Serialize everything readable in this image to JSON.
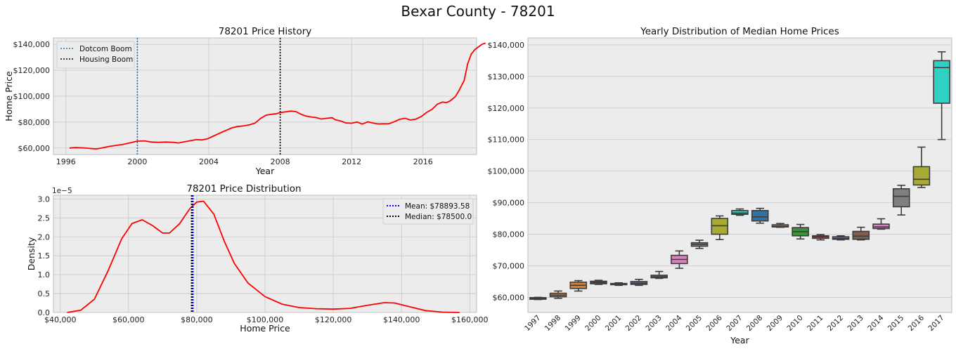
{
  "figure": {
    "suptitle": "Bexar County - 78201"
  },
  "chart_data": [
    {
      "id": "history",
      "type": "line",
      "title": "78201 Price History",
      "xlabel": "Year",
      "ylabel": "Home Price",
      "xlim": [
        1995.3,
        2019.0
      ],
      "ylim": [
        55000,
        145000
      ],
      "xticks": [
        1996,
        2000,
        2004,
        2008,
        2012,
        2016
      ],
      "yticks": [
        60000,
        80000,
        100000,
        120000,
        140000
      ],
      "ytick_labels": [
        "$60,000",
        "$80,000",
        "$100,000",
        "$120,000",
        "$140,000"
      ],
      "grid": true,
      "legend_position": "upper-left",
      "series": [
        {
          "color": "#ff0000",
          "points": [
            [
              1996.2,
              60000
            ],
            [
              1996.5,
              60300
            ],
            [
              1997.0,
              60100
            ],
            [
              1997.4,
              59600
            ],
            [
              1997.7,
              59300
            ],
            [
              1998.0,
              60000
            ],
            [
              1998.4,
              61200
            ],
            [
              1998.8,
              62000
            ],
            [
              1999.2,
              62800
            ],
            [
              1999.6,
              64000
            ],
            [
              2000.0,
              65300
            ],
            [
              2000.4,
              65500
            ],
            [
              2000.8,
              64600
            ],
            [
              2001.2,
              64400
            ],
            [
              2001.6,
              64600
            ],
            [
              2002.0,
              64400
            ],
            [
              2002.3,
              63900
            ],
            [
              2002.6,
              64700
            ],
            [
              2003.0,
              65700
            ],
            [
              2003.3,
              66500
            ],
            [
              2003.6,
              66200
            ],
            [
              2003.9,
              67000
            ],
            [
              2004.2,
              68800
            ],
            [
              2004.5,
              70800
            ],
            [
              2004.8,
              72600
            ],
            [
              2005.0,
              73800
            ],
            [
              2005.3,
              75600
            ],
            [
              2005.6,
              76600
            ],
            [
              2006.0,
              77200
            ],
            [
              2006.3,
              78000
            ],
            [
              2006.6,
              79300
            ],
            [
              2006.9,
              82800
            ],
            [
              2007.2,
              85300
            ],
            [
              2007.5,
              86000
            ],
            [
              2007.8,
              86500
            ],
            [
              2008.0,
              87400
            ],
            [
              2008.3,
              87900
            ],
            [
              2008.6,
              88500
            ],
            [
              2008.9,
              88000
            ],
            [
              2009.1,
              86500
            ],
            [
              2009.4,
              84800
            ],
            [
              2009.7,
              84000
            ],
            [
              2010.0,
              83500
            ],
            [
              2010.3,
              82400
            ],
            [
              2010.6,
              82900
            ],
            [
              2010.9,
              83400
            ],
            [
              2011.1,
              81800
            ],
            [
              2011.4,
              80800
            ],
            [
              2011.7,
              79300
            ],
            [
              2012.0,
              79100
            ],
            [
              2012.3,
              80100
            ],
            [
              2012.6,
              78500
            ],
            [
              2012.9,
              80200
            ],
            [
              2013.2,
              79300
            ],
            [
              2013.5,
              78600
            ],
            [
              2013.8,
              78700
            ],
            [
              2014.1,
              78800
            ],
            [
              2014.4,
              80400
            ],
            [
              2014.7,
              82200
            ],
            [
              2015.0,
              82900
            ],
            [
              2015.3,
              81600
            ],
            [
              2015.6,
              82300
            ],
            [
              2015.9,
              84300
            ],
            [
              2016.2,
              87500
            ],
            [
              2016.5,
              89800
            ],
            [
              2016.8,
              93800
            ],
            [
              2017.1,
              95500
            ],
            [
              2017.3,
              95000
            ],
            [
              2017.5,
              96200
            ],
            [
              2017.8,
              99500
            ],
            [
              2018.0,
              104000
            ],
            [
              2018.3,
              112000
            ],
            [
              2018.5,
              125000
            ],
            [
              2018.7,
              132500
            ],
            [
              2018.9,
              136000
            ],
            [
              2019.1,
              138000
            ],
            [
              2019.3,
              140000
            ],
            [
              2019.5,
              141000
            ]
          ]
        }
      ],
      "vlines": [
        {
          "x": 2000.0,
          "label": "Dotcom Boom",
          "color": "#1f77b4"
        },
        {
          "x": 2008.0,
          "label": "Housing Boom",
          "color": "#000000"
        }
      ]
    },
    {
      "id": "density",
      "type": "line",
      "title": "78201 Price Distribution",
      "xlabel": "Home Price",
      "ylabel": "Density",
      "offset_label": "1e−5",
      "xlim": [
        38000,
        162000
      ],
      "ylim": [
        0,
        3.1
      ],
      "xticks": [
        40000,
        60000,
        80000,
        100000,
        120000,
        140000,
        160000
      ],
      "xtick_labels": [
        "$40,000",
        "$60,000",
        "$80,000",
        "$100,000",
        "$120,000",
        "$140,000",
        "$160,000"
      ],
      "yticks": [
        0.0,
        0.5,
        1.0,
        1.5,
        2.0,
        2.5,
        3.0
      ],
      "ytick_labels": [
        "0.0",
        "0.5",
        "1.0",
        "1.5",
        "2.0",
        "2.5",
        "3.0"
      ],
      "grid": true,
      "legend_position": "upper-right",
      "series": [
        {
          "color": "#ff0000",
          "points": [
            [
              42000,
              0.0
            ],
            [
              46000,
              0.06
            ],
            [
              50000,
              0.35
            ],
            [
              54000,
              1.1
            ],
            [
              58000,
              1.95
            ],
            [
              61000,
              2.35
            ],
            [
              64000,
              2.45
            ],
            [
              67000,
              2.3
            ],
            [
              70000,
              2.1
            ],
            [
              72000,
              2.1
            ],
            [
              75000,
              2.35
            ],
            [
              78000,
              2.75
            ],
            [
              80000,
              2.92
            ],
            [
              82000,
              2.94
            ],
            [
              85000,
              2.6
            ],
            [
              88000,
              1.9
            ],
            [
              91000,
              1.3
            ],
            [
              95000,
              0.78
            ],
            [
              100000,
              0.42
            ],
            [
              105000,
              0.22
            ],
            [
              110000,
              0.13
            ],
            [
              115000,
              0.1
            ],
            [
              120000,
              0.09
            ],
            [
              125000,
              0.11
            ],
            [
              130000,
              0.19
            ],
            [
              135000,
              0.26
            ],
            [
              138000,
              0.25
            ],
            [
              142000,
              0.16
            ],
            [
              147000,
              0.05
            ],
            [
              152000,
              0.01
            ],
            [
              157000,
              0.0
            ]
          ]
        }
      ],
      "vlines": [
        {
          "x": 78893.58,
          "label": "Mean: $78893.58",
          "color": "#0000ff"
        },
        {
          "x": 78500.0,
          "label": "Median: $78500.0",
          "color": "#000000"
        }
      ]
    },
    {
      "id": "boxplot",
      "type": "box",
      "title": "Yearly Distribution of Median Home Prices",
      "xlabel": "Year",
      "ylabel": "",
      "ylim": [
        55200,
        142200
      ],
      "yticks": [
        60000,
        70000,
        80000,
        90000,
        100000,
        110000,
        120000,
        130000,
        140000
      ],
      "ytick_labels": [
        "$60,000",
        "$70,000",
        "$80,000",
        "$90,000",
        "$100,000",
        "$110,000",
        "$120,000",
        "$130,000",
        "$140,000"
      ],
      "grid": true,
      "categories": [
        "1997",
        "1998",
        "1999",
        "2000",
        "2001",
        "2002",
        "2003",
        "2004",
        "2005",
        "2006",
        "2007",
        "2008",
        "2009",
        "2010",
        "2011",
        "2012",
        "2013",
        "2014",
        "2015",
        "2016",
        "2017"
      ],
      "boxes": [
        {
          "whislo": 59300,
          "q1": 59400,
          "med": 59600,
          "q3": 59900,
          "whishi": 60000,
          "color": "#3274a1"
        },
        {
          "whislo": 59700,
          "q1": 60200,
          "med": 60700,
          "q3": 61300,
          "whishi": 62000,
          "color": "#e1812c"
        },
        {
          "whislo": 62000,
          "q1": 62800,
          "med": 63800,
          "q3": 64800,
          "whishi": 65300,
          "color": "#e1812c"
        },
        {
          "whislo": 64100,
          "q1": 64300,
          "med": 64700,
          "q3": 65100,
          "whishi": 65400,
          "color": "#3a923a"
        },
        {
          "whislo": 63800,
          "q1": 64000,
          "med": 64200,
          "q3": 64400,
          "whishi": 64600,
          "color": "#c03d3e"
        },
        {
          "whislo": 63800,
          "q1": 64100,
          "med": 64500,
          "q3": 65000,
          "whishi": 65700,
          "color": "#9372b2"
        },
        {
          "whislo": 66000,
          "q1": 66200,
          "med": 66500,
          "q3": 67000,
          "whishi": 68200,
          "color": "#845b53"
        },
        {
          "whislo": 69200,
          "q1": 70700,
          "med": 72000,
          "q3": 73300,
          "whishi": 74700,
          "color": "#d684bd"
        },
        {
          "whislo": 75500,
          "q1": 76200,
          "med": 76800,
          "q3": 77300,
          "whishi": 78100,
          "color": "#7f7f7f"
        },
        {
          "whislo": 78300,
          "q1": 80000,
          "med": 82700,
          "q3": 85000,
          "whishi": 85800,
          "color": "#a9aa35"
        },
        {
          "whislo": 86000,
          "q1": 86300,
          "med": 86700,
          "q3": 87500,
          "whishi": 88000,
          "color": "#2ed1c4"
        },
        {
          "whislo": 83500,
          "q1": 84200,
          "med": 85500,
          "q3": 87500,
          "whishi": 88200,
          "color": "#3274a1"
        },
        {
          "whislo": 82200,
          "q1": 82300,
          "med": 82500,
          "q3": 83000,
          "whishi": 83400,
          "color": "#e1812c"
        },
        {
          "whislo": 78500,
          "q1": 79500,
          "med": 80800,
          "q3": 82100,
          "whishi": 83100,
          "color": "#3a923a"
        },
        {
          "whislo": 78200,
          "q1": 78700,
          "med": 79200,
          "q3": 79500,
          "whishi": 79900,
          "color": "#c03d3e"
        },
        {
          "whislo": 78200,
          "q1": 78400,
          "med": 78700,
          "q3": 79200,
          "whishi": 79500,
          "color": "#9372b2"
        },
        {
          "whislo": 78200,
          "q1": 78400,
          "med": 79400,
          "q3": 80900,
          "whishi": 82200,
          "color": "#845b53"
        },
        {
          "whislo": 81600,
          "q1": 81800,
          "med": 82300,
          "q3": 83200,
          "whishi": 84900,
          "color": "#d684bd"
        },
        {
          "whislo": 86100,
          "q1": 88700,
          "med": 92000,
          "q3": 94400,
          "whishi": 95500,
          "color": "#7f7f7f"
        },
        {
          "whislo": 94800,
          "q1": 95600,
          "med": 97400,
          "q3": 101400,
          "whishi": 107600,
          "color": "#a9aa35"
        },
        {
          "whislo": 110000,
          "q1": 121500,
          "med": 132800,
          "q3": 135000,
          "whishi": 137800,
          "color": "#2ed1c4"
        }
      ]
    }
  ]
}
